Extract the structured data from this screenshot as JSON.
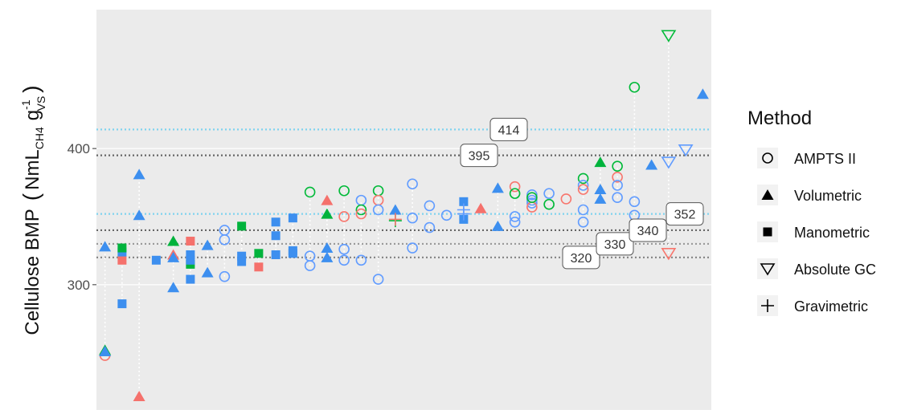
{
  "chart_data": {
    "type": "scatter",
    "y_label": {
      "main": "Cellulose BMP",
      "open": "(",
      "unit": "NmL",
      "unit_sub": "CH4",
      "unit2": "g",
      "unit2_sup": "-1",
      "unit2_sub": "VS",
      "close": ")"
    },
    "xlim": [
      0.5,
      36.5
    ],
    "ylim": [
      208,
      502
    ],
    "yticks": [
      300,
      400
    ],
    "grid": true,
    "legend_title": "Method",
    "legend_position": "right",
    "reference_lines": [
      {
        "value": 320,
        "color": "#888888"
      },
      {
        "value": 330,
        "color": "#999999"
      },
      {
        "value": 340,
        "color": "#666666"
      },
      {
        "value": 352,
        "color": "#7fd3ef"
      },
      {
        "value": 395,
        "color": "#666666"
      },
      {
        "value": 414,
        "color": "#7fd3ef"
      }
    ],
    "series": [
      {
        "name": "AMPTS II",
        "shape": "circle",
        "x": [
          1,
          8,
          8,
          8,
          13,
          13,
          13,
          15,
          15,
          15,
          15,
          16,
          16,
          16,
          16,
          17,
          17,
          17,
          17,
          19,
          19,
          19,
          20,
          20,
          21,
          25,
          25,
          25,
          25,
          26,
          26,
          26,
          26,
          26,
          27,
          27,
          28,
          29,
          29,
          29,
          29,
          29,
          31,
          31,
          31,
          31,
          32,
          32,
          32
        ],
        "values": [
          248,
          340,
          333,
          306,
          368,
          321,
          314,
          369,
          350,
          326,
          318,
          362,
          355,
          352,
          318,
          369,
          362,
          355,
          304,
          374,
          349,
          327,
          358,
          342,
          351,
          372,
          367,
          350,
          346,
          366,
          362,
          360,
          357,
          364,
          367,
          359,
          363,
          378,
          373,
          370,
          355,
          346,
          387,
          379,
          373,
          364,
          445,
          361,
          351
        ],
        "colors": [
          "#f8766d",
          "#619cff",
          "#619cff",
          "#619cff",
          "#00ba38",
          "#619cff",
          "#619cff",
          "#00ba38",
          "#f8766d",
          "#619cff",
          "#619cff",
          "#619cff",
          "#00ba38",
          "#f8766d",
          "#619cff",
          "#00ba38",
          "#f8766d",
          "#619cff",
          "#619cff",
          "#619cff",
          "#619cff",
          "#619cff",
          "#619cff",
          "#619cff",
          "#619cff",
          "#f8766d",
          "#00ba38",
          "#619cff",
          "#619cff",
          "#619cff",
          "#619cff",
          "#619cff",
          "#f8766d",
          "#00ba38",
          "#619cff",
          "#00ba38",
          "#f8766d",
          "#00ba38",
          "#619cff",
          "#f8766d",
          "#619cff",
          "#619cff",
          "#00ba38",
          "#f8766d",
          "#619cff",
          "#619cff",
          "#00ba38",
          "#619cff",
          "#619cff"
        ]
      },
      {
        "name": "Volumetric",
        "shape": "triangle",
        "x": [
          1,
          1,
          1,
          3,
          3,
          3,
          5,
          5,
          5,
          5,
          7,
          7,
          14,
          14,
          14,
          14,
          18,
          23,
          24,
          24,
          30,
          30,
          30,
          33,
          36
        ],
        "values": [
          328,
          252,
          251,
          381,
          351,
          218,
          332,
          322,
          320,
          298,
          329,
          309,
          362,
          352,
          327,
          320,
          355,
          356,
          371,
          343,
          390,
          370,
          363,
          388,
          440
        ],
        "colors": [
          "#3d8fef",
          "#00b33c",
          "#3d8fef",
          "#3d8fef",
          "#3d8fef",
          "#f5716c",
          "#00b33c",
          "#f5716c",
          "#3d8fef",
          "#3d8fef",
          "#3d8fef",
          "#3d8fef",
          "#f5716c",
          "#00b33c",
          "#3d8fef",
          "#3d8fef",
          "#3d8fef",
          "#f5716c",
          "#3d8fef",
          "#3d8fef",
          "#00b33c",
          "#3d8fef",
          "#3d8fef",
          "#3d8fef",
          "#3d8fef"
        ]
      },
      {
        "name": "Manometric",
        "shape": "square",
        "x": [
          2,
          2,
          2,
          2,
          4,
          6,
          6,
          6,
          6,
          6,
          9,
          9,
          9,
          10,
          10,
          11,
          11,
          11,
          12,
          12,
          12,
          22,
          22
        ],
        "values": [
          318,
          324,
          327,
          286,
          318,
          332,
          322,
          315,
          304,
          318,
          343,
          321,
          317,
          323,
          313,
          346,
          336,
          322,
          349,
          325,
          323,
          361,
          348
        ],
        "colors": [
          "#f5716c",
          "#3d8fef",
          "#00b33c",
          "#3d8fef",
          "#3d8fef",
          "#f5716c",
          "#3d8fef",
          "#00b33c",
          "#3d8fef",
          "#3d8fef",
          "#00b33c",
          "#3d8fef",
          "#3d8fef",
          "#00b33c",
          "#f5716c",
          "#3d8fef",
          "#3d8fef",
          "#3d8fef",
          "#3d8fef",
          "#3d8fef",
          "#3d8fef",
          "#3d8fef",
          "#3d8fef"
        ]
      },
      {
        "name": "Absolute GC",
        "shape": "triangle-down",
        "x": [
          34,
          34,
          34,
          35
        ],
        "values": [
          483,
          390,
          323,
          399
        ],
        "colors": [
          "#00ba38",
          "#619cff",
          "#f8766d",
          "#619cff"
        ]
      },
      {
        "name": "Gravimetric",
        "shape": "plus",
        "x": [
          18,
          18,
          22,
          22
        ],
        "values": [
          347,
          348,
          355,
          352
        ],
        "colors": [
          "#00ba38",
          "#f8766d",
          "#619cff",
          "#619cff"
        ]
      }
    ]
  }
}
